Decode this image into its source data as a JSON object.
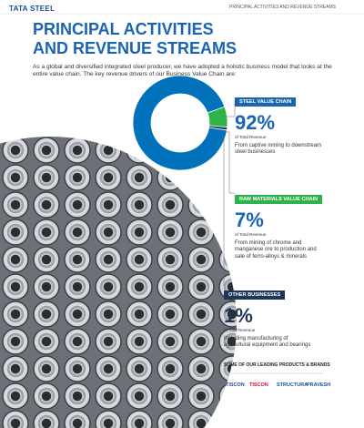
{
  "header": {
    "logo": "TATA STEEL",
    "section": "PRINCIPAL ACTIVITIES AND REVENUE STREAMS"
  },
  "title_lines": [
    "PRINCIPAL ACTIVITIES",
    "AND REVENUE STREAMS"
  ],
  "intro": "As a global and diversified integrated steel producer, we have adopted a holistic business model that looks at the entire value chain. The key revenue drivers of our Business Value Chain are:",
  "donut": {
    "segments": [
      {
        "name": "STEEL VALUE CHAIN",
        "value": 92,
        "label": "92%",
        "caption": "of Total Revenue",
        "description": "From captive mining to downstream steel businesses",
        "color": "#0072bc"
      },
      {
        "name": "RAW MATERIALS VALUE CHAIN",
        "value": 7,
        "label": "7%",
        "caption": "of Total Revenue",
        "description": "From mining of chrome and manganese ore to production and sale of ferro-alloys & minerals",
        "color": "#2db34a"
      },
      {
        "name": "OTHER BUSINESSES",
        "value": 1,
        "label": "1%",
        "caption": "of Total Revenue",
        "description": "Including manufacturing of agricultural equipment and bearings",
        "color": "#1d3557"
      }
    ]
  },
  "brands": {
    "heading": "SOME OF OUR LEADING PRODUCTS & BRANDS",
    "items": [
      "TISCON",
      "TISCON",
      "STRUCTURA",
      "PRAVESH"
    ]
  }
}
